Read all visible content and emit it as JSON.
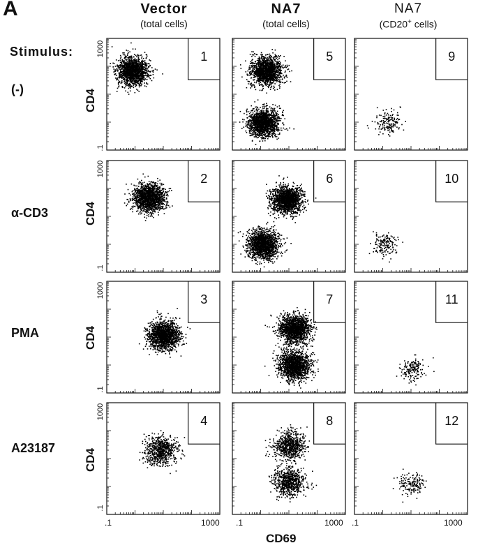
{
  "figure": {
    "panel_letter": "A",
    "stimulus_header": "Stimulus:",
    "columns": [
      {
        "title": "Vector",
        "subtitle": "(total   cells)"
      },
      {
        "title": "NA7",
        "subtitle": "(total     cells)"
      },
      {
        "title": "NA7",
        "subtitle_pre": "(CD20",
        "subtitle_sup": "+",
        "subtitle_post": " cells)"
      }
    ],
    "rows": [
      {
        "stimulus": "(-)"
      },
      {
        "stimulus": "α-CD3"
      },
      {
        "stimulus": "PMA"
      },
      {
        "stimulus": "A23187"
      }
    ],
    "ylabel": "CD4",
    "xlabel": "CD69",
    "y_ticks": {
      "top": "1000",
      "bottom": ".1"
    },
    "x_ticks": {
      "left": ".1",
      "right": "1000"
    },
    "panel_numbers": [
      "1",
      "5",
      "9",
      "2",
      "6",
      "10",
      "3",
      "7",
      "11",
      "4",
      "8",
      "12"
    ]
  },
  "chart_data": {
    "type": "scatter",
    "title": "",
    "xlabel": "CD69",
    "ylabel": "CD4",
    "x_scale": "log",
    "y_scale": "log",
    "xlim": [
      0.1,
      1000
    ],
    "ylim": [
      0.1,
      1000
    ],
    "panels": [
      {
        "number": 1,
        "row": "(-)",
        "column": "Vector (total cells)",
        "clusters": [
          {
            "x": 0.8,
            "y": 70,
            "density": "high"
          }
        ]
      },
      {
        "number": 2,
        "row": "α-CD3",
        "column": "Vector (total cells)",
        "clusters": [
          {
            "x": 3,
            "y": 50,
            "density": "high"
          }
        ]
      },
      {
        "number": 3,
        "row": "PMA",
        "column": "Vector (total cells)",
        "clusters": [
          {
            "x": 10,
            "y": 12,
            "density": "high"
          }
        ]
      },
      {
        "number": 4,
        "row": "A23187",
        "column": "Vector (total cells)",
        "clusters": [
          {
            "x": 8,
            "y": 20,
            "density": "medium"
          }
        ]
      },
      {
        "number": 5,
        "row": "(-)",
        "column": "NA7 (total cells)",
        "clusters": [
          {
            "x": 1.5,
            "y": 70,
            "density": "high"
          },
          {
            "x": 1.2,
            "y": 1,
            "density": "high"
          }
        ]
      },
      {
        "number": 6,
        "row": "α-CD3",
        "column": "NA7 (total cells)",
        "clusters": [
          {
            "x": 8,
            "y": 40,
            "density": "high"
          },
          {
            "x": 1.2,
            "y": 1,
            "density": "high"
          }
        ]
      },
      {
        "number": 7,
        "row": "PMA",
        "column": "NA7 (total cells)",
        "clusters": [
          {
            "x": 15,
            "y": 20,
            "density": "high"
          },
          {
            "x": 15,
            "y": 1,
            "density": "high"
          }
        ]
      },
      {
        "number": 8,
        "row": "A23187",
        "column": "NA7 (total cells)",
        "clusters": [
          {
            "x": 10,
            "y": 30,
            "density": "medium"
          },
          {
            "x": 10,
            "y": 1.5,
            "density": "medium"
          }
        ]
      },
      {
        "number": 9,
        "row": "(-)",
        "column": "NA7 (CD20+ cells)",
        "clusters": [
          {
            "x": 1.5,
            "y": 1,
            "density": "low"
          }
        ]
      },
      {
        "number": 10,
        "row": "α-CD3",
        "column": "NA7 (CD20+ cells)",
        "clusters": [
          {
            "x": 1.2,
            "y": 1,
            "density": "low"
          }
        ]
      },
      {
        "number": 11,
        "row": "PMA",
        "column": "NA7 (CD20+ cells)",
        "clusters": [
          {
            "x": 10,
            "y": 0.8,
            "density": "low"
          }
        ]
      },
      {
        "number": 12,
        "row": "A23187",
        "column": "NA7 (CD20+ cells)",
        "clusters": [
          {
            "x": 10,
            "y": 1.2,
            "density": "low"
          }
        ]
      }
    ]
  }
}
